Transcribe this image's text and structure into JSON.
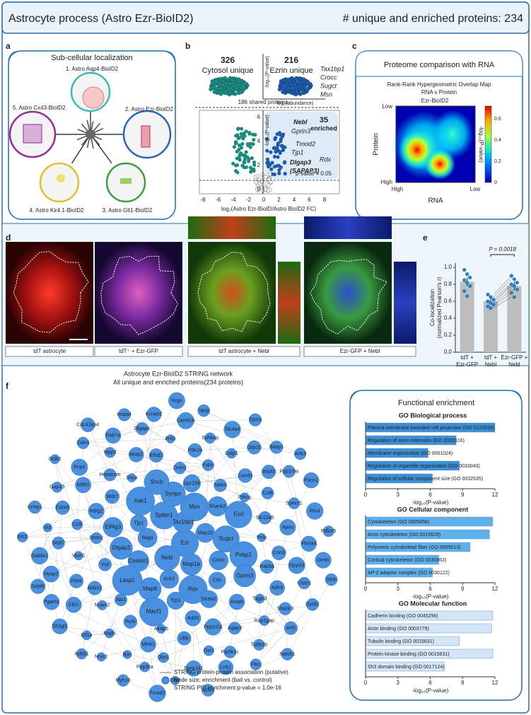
{
  "header": {
    "title": "Astrocyte process (Astro Ezr-BioID2)",
    "count_label": "# unique and enriched proteins: 234"
  },
  "panel_a": {
    "letter": "a",
    "title": "Sub-cellular localization",
    "labels": [
      "1. Astro Aqp4-BioID2",
      "2. Astro Ezr-BioID2",
      "3. Astro Glt1-BioID2",
      "4. Astro Kir4.1-BioID2",
      "5. Astro Cx43-BioID2"
    ]
  },
  "panel_b": {
    "letter": "b",
    "cytosol_count": "326",
    "cytosol_label": "Cytosol unique",
    "ezrin_count": "216",
    "ezrin_label": "Ezrin unique",
    "top_genes": [
      "Tax1bp1",
      "Crocc",
      "Sugct",
      "Msn"
    ],
    "top_ylabel": "-log₁₀(P-value)",
    "top_xlabel": "log₂(abundance)",
    "shared": "186 shared proteins",
    "enriched_count": "35",
    "enriched_label": "enriched",
    "genes": [
      "Nebl",
      "Gprin3",
      "Tmod2",
      "Tjp1",
      "Rdx",
      "Dlgap3",
      "(SAPAP3)"
    ],
    "ylabel": "-log₁₀(P-value)",
    "yticks": [
      "0",
      "2",
      "4",
      "6"
    ],
    "xticks": [
      "-8",
      "-6",
      "-4",
      "-2",
      "0",
      "2",
      "4",
      "6",
      "8"
    ],
    "pvalue": "p-value = 0.05",
    "xlabel": "log₂(Astro Ezr-BioID/Astro BioID2 FC)"
  },
  "panel_c": {
    "letter": "c",
    "title": "Proteome comparison with RNA",
    "subtitle": [
      "Rank-Rank Hypergeometric Overlap Map",
      "RNA v Protein"
    ],
    "inner_title": "Ezr-BioID2",
    "ylabel": "Protein",
    "xlabel": "RNA",
    "y_low": "Low",
    "y_high": "High",
    "x_high": "High",
    "x_low": "Low",
    "colorbar_label": "-log₁₀(P-value)",
    "colorbar_ticks": [
      "0",
      "0.2",
      "0.4",
      "0.6"
    ]
  },
  "panel_d": {
    "letter": "d",
    "captions": [
      "tdT astrocyte",
      "tdT⁺ + Ezr-GFP",
      "tdT astrocyte + Nebl",
      "Ezr-GFP + Nebl"
    ]
  },
  "panel_e": {
    "letter": "e",
    "type": "bar",
    "categories": [
      [
        "tdT +",
        "Ezr-GFP"
      ],
      [
        "tdT +",
        "Nebl"
      ],
      [
        "Ezr-GFP +",
        "Nebl"
      ]
    ],
    "values": [
      0.83,
      0.6,
      0.78
    ],
    "errors": [
      0.05,
      0.03,
      0.05
    ],
    "points": [
      [
        0.97,
        0.92,
        0.88,
        0.85,
        0.82,
        0.78,
        0.72,
        0.66
      ],
      [
        0.68,
        0.65,
        0.62,
        0.6,
        0.58,
        0.56,
        0.54,
        0.52
      ],
      [
        0.9,
        0.86,
        0.82,
        0.8,
        0.78,
        0.74,
        0.7,
        0.65
      ]
    ],
    "ylabel": [
      "Co-localization",
      "(normalized Pearson's r)"
    ],
    "pvalue": "P = 0.0018",
    "ylim": [
      0,
      1.05
    ],
    "yticks": [
      {
        "value": 0,
        "label": "0.0"
      },
      {
        "value": 0.2,
        "label": "0.2"
      },
      {
        "value": 0.4,
        "label": "0.4"
      },
      {
        "value": 0.6,
        "label": "0.6"
      },
      {
        "value": 0.8,
        "label": "0.8"
      },
      {
        "value": 1,
        "label": "1.0"
      }
    ],
    "color": "#bdbdbd",
    "point_color": "#2a7fc0"
  },
  "panel_f": {
    "letter": "f",
    "title": [
      "Astrocyte Ezr-BioID2 STRING network",
      "All unique and enriched proteins(234 proteins)"
    ],
    "legend": [
      "STRING protein-protein association (putative)",
      "Node size; enrichment (bait vs. control)",
      "STRING PPI enrichment p-value = 1.0e-16"
    ],
    "nodes": [
      "Ezr",
      "Nebl",
      "Tax1bp1",
      "Map1a",
      "Mapt",
      "Map1b",
      "Ank2",
      "Sptbn1",
      "Crocc",
      "Caskin1",
      "Msn",
      "Rdx",
      "Tjp1",
      "Sugct",
      "Map6",
      "Synpo",
      "Cttn",
      "Dlgap3",
      "Shank2",
      "Tcp1",
      "Aak1",
      "Pebp1",
      "Lasp1",
      "Gpr158",
      "Slc8a2",
      "Eif4g3",
      "Esd",
      "Macf1",
      "Sncb",
      "Gprin3",
      "Vcp",
      "Nefm",
      "Add3",
      "Wdr7",
      "Pclo",
      "Abi1",
      "Dnm2",
      "Amph",
      "Stmn1",
      "Prkcg",
      "Akap5",
      "Snca",
      "Rab5a",
      "Ablim2",
      "Palm",
      "Ppp2r2a",
      "Ndrg2",
      "Slc12a5",
      "Purb",
      "Efhd2",
      "Tagln3",
      "Vasn1",
      "Cand1",
      "Ubb",
      "Hepacam",
      "Cnn3",
      "Ncam2",
      "Pde2a",
      "Agap3",
      "Cct5",
      "Cct8",
      "Mink1",
      "Akap2",
      "Adh5",
      "Pdxk",
      "Gstp1",
      "Oxr1",
      "Mdh1",
      "Apoo",
      "Napb",
      "Prrt3",
      "Rap1gap",
      "Sept7",
      "Wipf3",
      "Dbn1",
      "Mpp3",
      "Dpysl3",
      "Cbr1",
      "Sphkap",
      "Pip5k1c",
      "Exoc8",
      "Specc1",
      "Bsn",
      "Dlgap4",
      "Shank3",
      "Nyap2",
      "Dpp10",
      "Dync1li1",
      "Pcp4",
      "Plxna4",
      "Kif1a",
      "Camk2b",
      "Tubb1b",
      "Vcl",
      "Ppp1r9a",
      "Ppp3ca",
      "Rab7a",
      "Clstn1",
      "Pgam1",
      "Slc4a4",
      "Lrrk1",
      "Gap43",
      "Rtn4",
      "Nrxn1",
      "Kcnab2",
      "Arf3",
      "Gabbr1",
      "Basp1",
      "Dlg2",
      "Caln1",
      "Dmtn",
      "Sh3gl1",
      "Vasp",
      "Plec",
      "Crmp1",
      "Fscn1",
      "Myh10",
      "Hspa4",
      "Dynll2",
      "Sept5",
      "Tpm3",
      "Actn1",
      "Dclk2",
      "Pdlim5",
      "Apbb1",
      "Nrgn",
      "Notch1",
      "Erc2",
      "Ank3",
      "Tmod2",
      "Cdc42ep4",
      "Dtnb"
    ]
  },
  "enrichment": {
    "title": "Functional enrichment",
    "xlabel": "-log₁₀(P-value)",
    "xlim": [
      0,
      12
    ],
    "xticks": [
      0,
      3,
      6,
      9,
      12
    ],
    "groups": [
      {
        "title": "GO Biological process",
        "color": "#3d8fd6",
        "terms": [
          "Plasma membrane bounded cell projection (GO 0120039)",
          "Regulation of axon extension (GO 0030516)",
          "Membrane organization (GO 0061024)",
          "Regulation of organelle organization (GO 0033043)",
          "Regulation of cellular component size (GO 0032535)"
        ],
        "values": [
          12,
          8.4,
          5.8,
          8.7,
          6.2
        ]
      },
      {
        "title": "GO Cellular component",
        "color": "#5eb0ea",
        "terms": [
          "Cytoskeleton (GO 0005856)",
          "Actin cytoskeleton (GO 0015629)",
          "Polymeric cytoskeletal fiber (GO 0099513)",
          "Cortical cytoskeleton (GO 0030863)",
          "AP-2 adaptor complex (GO 0030122)"
        ],
        "values": [
          11.8,
          11.5,
          9.7,
          6.8,
          6.2
        ]
      },
      {
        "title": "GO Molecular function",
        "color": "#d3e5f6",
        "terms": [
          "Cadherin binding (GO 0045296)",
          "Actin binding (GO 0003779)",
          "Tubulin binding (GO 0015631)",
          "Protein kinase binding (GO 0015631)",
          "Sh3 domain binding (GO 0017124)"
        ],
        "values": [
          11.8,
          11.7,
          8.7,
          11.8,
          7.3
        ]
      }
    ]
  }
}
